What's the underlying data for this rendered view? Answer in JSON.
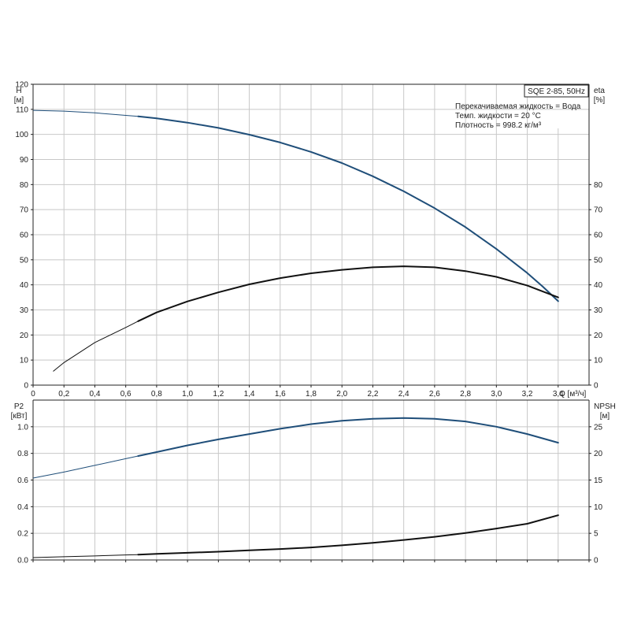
{
  "model": "SQE 2-85, 50Hz",
  "info_lines": [
    "Перекачиваемая жидкость = Вода",
    "Темп. жидкости = 20 °C",
    "Плотность = 998.2 кг/м³"
  ],
  "colors": {
    "head_curve": "#1f4e79",
    "eta_curve": "#111111",
    "p2_curve": "#1f4e79",
    "npsh_curve": "#111111",
    "grid": "#c8c8c8"
  },
  "chart_data": [
    {
      "type": "line",
      "panel": "top",
      "xlabel": "Q [м³/ч]",
      "xlim": [
        0,
        3.6
      ],
      "x_ticks": [
        0,
        0.2,
        0.4,
        0.6,
        0.8,
        1.0,
        1.2,
        1.4,
        1.6,
        1.8,
        2.0,
        2.2,
        2.4,
        2.6,
        2.8,
        3.0,
        3.2,
        3.4
      ],
      "x_tick_labels": [
        "0",
        "0,2",
        "0,4",
        "0,6",
        "0,8",
        "1,0",
        "1,2",
        "1,4",
        "1,6",
        "1,8",
        "2,0",
        "2,2",
        "2,4",
        "2,6",
        "2,8",
        "3,0",
        "3,2",
        "3,4"
      ],
      "left_axis": {
        "label_lines": [
          "H",
          "[м]"
        ],
        "ylim": [
          0,
          120
        ],
        "ticks": [
          0,
          10,
          20,
          30,
          40,
          50,
          60,
          70,
          80,
          90,
          100,
          110,
          120
        ]
      },
      "right_axis": {
        "label_lines": [
          "eta",
          "[%]"
        ],
        "ylim": [
          0,
          120
        ],
        "ticks": [
          0,
          10,
          20,
          30,
          40,
          50,
          60,
          70,
          80
        ]
      },
      "grid": true,
      "series": [
        {
          "axis": "left",
          "color_key": "head_curve",
          "x": [
            0,
            0.2,
            0.4,
            0.6,
            0.68,
            0.8,
            1.0,
            1.2,
            1.4,
            1.6,
            1.8,
            2.0,
            2.2,
            2.4,
            2.6,
            2.8,
            3.0,
            3.2,
            3.3,
            3.4
          ],
          "y": [
            109.6,
            109.3,
            108.6,
            107.6,
            107.2,
            106.4,
            104.7,
            102.6,
            99.9,
            96.8,
            93.0,
            88.6,
            83.3,
            77.3,
            70.6,
            63.0,
            54.3,
            44.7,
            39.3,
            33.5
          ],
          "thin_until": 0.68
        },
        {
          "axis": "right",
          "color_key": "eta_curve",
          "x": [
            0.13,
            0.2,
            0.4,
            0.6,
            0.68,
            0.8,
            1.0,
            1.2,
            1.4,
            1.6,
            1.8,
            2.0,
            2.2,
            2.4,
            2.6,
            2.8,
            3.0,
            3.2,
            3.4
          ],
          "y": [
            5.5,
            9.0,
            17.0,
            23.0,
            25.5,
            29.0,
            33.4,
            37.0,
            40.2,
            42.7,
            44.6,
            46.0,
            47.0,
            47.4,
            47.0,
            45.5,
            43.2,
            39.7,
            35.0
          ],
          "thin_until": 0.68
        }
      ]
    },
    {
      "type": "line",
      "panel": "bottom",
      "xlim": [
        0,
        3.6
      ],
      "left_axis": {
        "label_lines": [
          "P2",
          "[кВт]"
        ],
        "ylim": [
          0,
          1.2
        ],
        "ticks": [
          0,
          0.2,
          0.4,
          0.6,
          0.8,
          1.0
        ],
        "tick_labels": [
          "0.0",
          "0.2",
          "0.4",
          "0.6",
          "0.8",
          "1.0"
        ]
      },
      "right_axis": {
        "label_lines": [
          "NPSH",
          "[м]"
        ],
        "ylim": [
          0,
          30
        ],
        "ticks": [
          0,
          5,
          10,
          15,
          20,
          25
        ]
      },
      "grid": true,
      "series": [
        {
          "axis": "left",
          "color_key": "p2_curve",
          "x": [
            0,
            0.2,
            0.4,
            0.6,
            0.68,
            0.8,
            1.0,
            1.2,
            1.4,
            1.6,
            1.8,
            2.0,
            2.2,
            2.4,
            2.6,
            2.8,
            3.0,
            3.2,
            3.4
          ],
          "y": [
            0.615,
            0.66,
            0.71,
            0.76,
            0.78,
            0.81,
            0.86,
            0.905,
            0.945,
            0.985,
            1.02,
            1.045,
            1.06,
            1.065,
            1.06,
            1.04,
            1.0,
            0.945,
            0.88
          ],
          "thin_until": 0.68
        },
        {
          "axis": "right",
          "color_key": "npsh_curve",
          "x": [
            0,
            0.2,
            0.4,
            0.6,
            0.68,
            0.8,
            1.0,
            1.2,
            1.4,
            1.6,
            1.8,
            2.0,
            2.2,
            2.4,
            2.6,
            2.8,
            3.0,
            3.2,
            3.4
          ],
          "y": [
            0.45,
            0.6,
            0.75,
            0.95,
            1.0,
            1.15,
            1.35,
            1.55,
            1.8,
            2.05,
            2.35,
            2.75,
            3.2,
            3.75,
            4.35,
            5.05,
            5.9,
            6.8,
            8.4
          ],
          "thin_until": 0.68
        }
      ]
    }
  ]
}
